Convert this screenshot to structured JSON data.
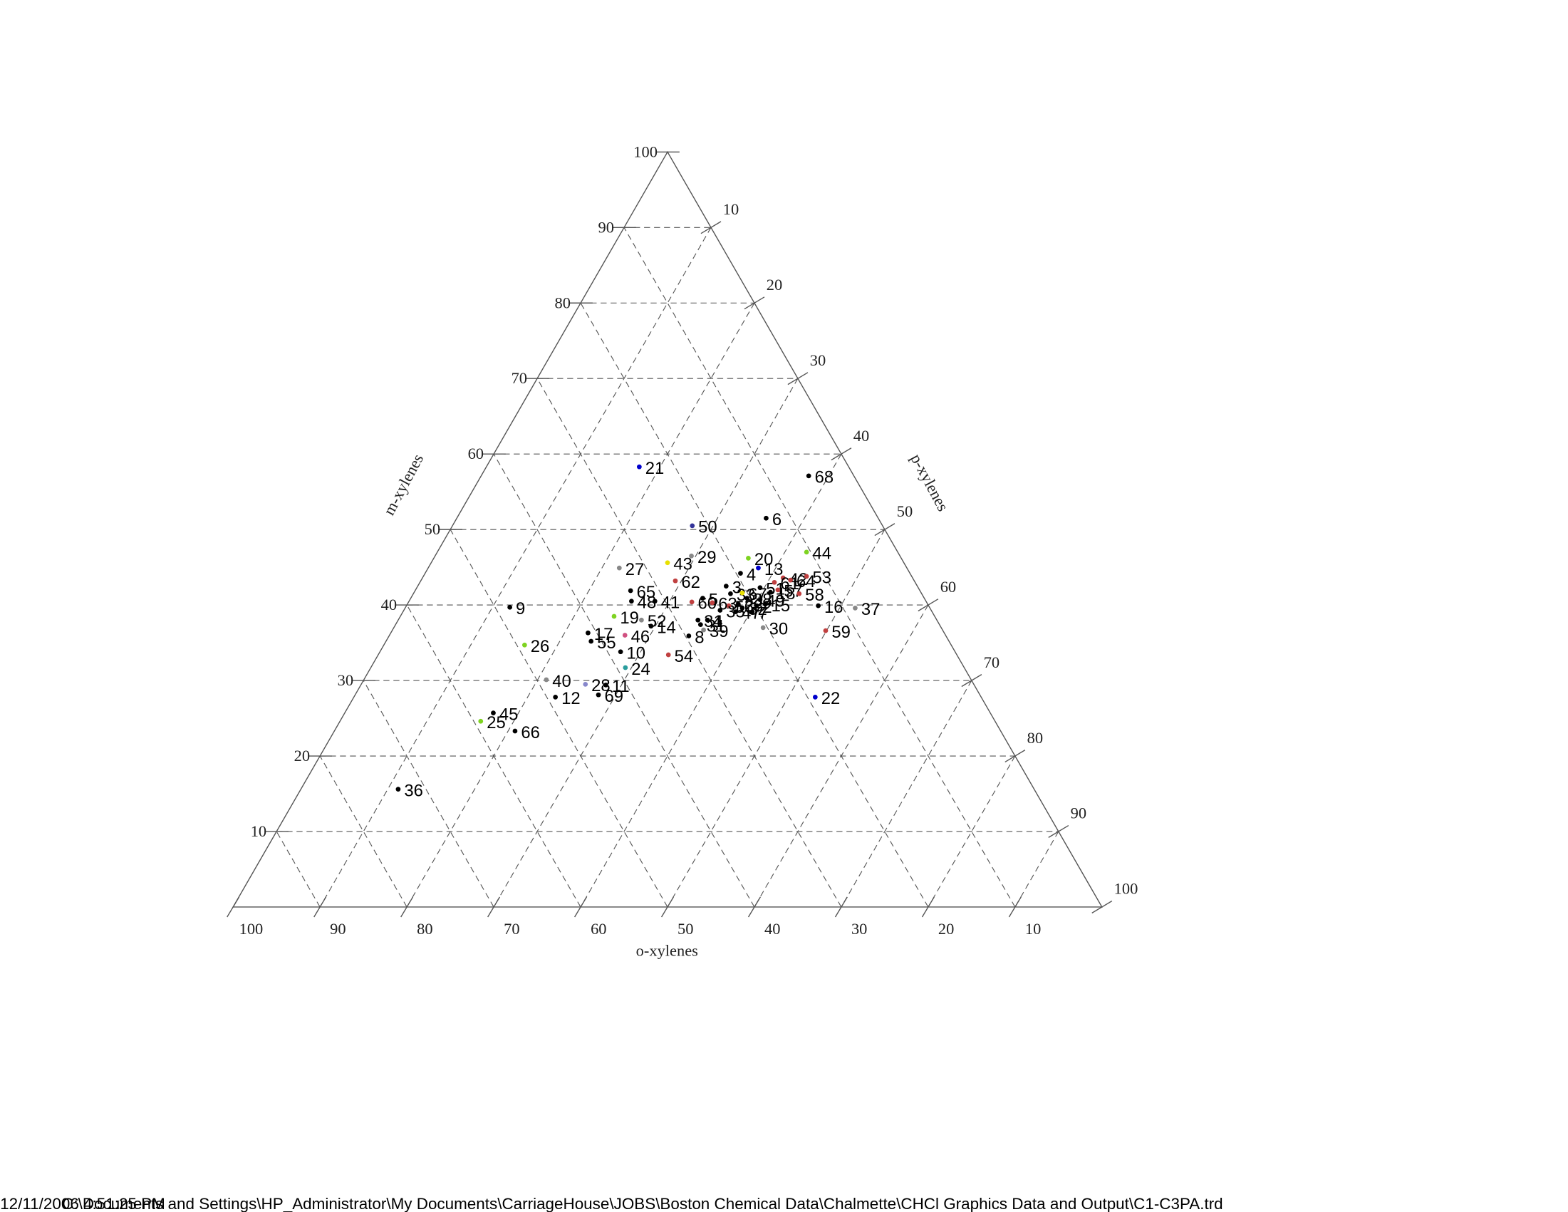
{
  "chart_data": {
    "type": "ternary",
    "axes": {
      "m": {
        "label": "m-xylenes",
        "ticks": [
          10,
          20,
          30,
          40,
          50,
          60,
          70,
          80,
          90,
          100
        ]
      },
      "p": {
        "label": "p-xylenes",
        "ticks": [
          10,
          20,
          30,
          40,
          50,
          60,
          70,
          80,
          90,
          100
        ]
      },
      "o": {
        "label": "o-xylenes",
        "ticks": [
          100,
          90,
          80,
          70,
          60,
          50,
          40,
          30,
          20,
          10
        ]
      }
    },
    "grid": true,
    "points": [
      {
        "label": "1",
        "m": 38.0,
        "p": 35.6,
        "o": 26.4,
        "color": "#000000"
      },
      {
        "label": "2",
        "m": 39.9,
        "p": 40.3,
        "o": 19.8,
        "color": "#000000"
      },
      {
        "label": "3",
        "m": 42.5,
        "p": 35.5,
        "o": 22.0,
        "color": "#000000"
      },
      {
        "label": "4",
        "m": 44.2,
        "p": 36.3,
        "o": 19.5,
        "color": "#000000"
      },
      {
        "label": "5",
        "m": 40.9,
        "p": 33.6,
        "o": 25.5,
        "color": "#000000"
      },
      {
        "label": "6",
        "m": 51.5,
        "p": 35.6,
        "o": 12.9,
        "color": "#000000"
      },
      {
        "label": "7",
        "m": 39.1,
        "p": 40.2,
        "o": 20.7,
        "color": "#000000"
      },
      {
        "label": "8",
        "m": 35.9,
        "p": 34.5,
        "o": 29.6,
        "color": "#000000"
      },
      {
        "label": "9",
        "m": 39.7,
        "p": 12.0,
        "o": 48.3,
        "color": "#000000"
      },
      {
        "label": "10",
        "m": 33.8,
        "p": 27.7,
        "o": 38.5,
        "color": "#000000"
      },
      {
        "label": "11",
        "m": 29.4,
        "p": 28.2,
        "o": 42.4,
        "color": "#000000"
      },
      {
        "label": "12",
        "m": 27.8,
        "p": 23.2,
        "o": 49.0,
        "color": "#000000"
      },
      {
        "label": "13",
        "m": 44.9,
        "p": 38.0,
        "o": 17.1,
        "color": "#0000cc"
      },
      {
        "label": "14",
        "m": 37.2,
        "p": 29.5,
        "o": 33.3,
        "color": "#000000"
      },
      {
        "label": "15",
        "m": 40.1,
        "p": 41.2,
        "o": 18.7,
        "color": "#000000"
      },
      {
        "label": "16",
        "m": 39.9,
        "p": 47.4,
        "o": 12.7,
        "color": "#000000"
      },
      {
        "label": "17",
        "m": 36.3,
        "p": 22.7,
        "o": 41.0,
        "color": "#000000"
      },
      {
        "label": "18",
        "m": 41.7,
        "p": 41.0,
        "o": 17.3,
        "color": "#000000"
      },
      {
        "label": "19",
        "m": 38.5,
        "p": 24.6,
        "o": 36.9,
        "color": "#7ed321"
      },
      {
        "label": "20",
        "m": 46.2,
        "p": 36.2,
        "o": 17.6,
        "color": "#7ed321"
      },
      {
        "label": "21",
        "m": 58.3,
        "p": 17.6,
        "o": 24.1,
        "color": "#0000cc"
      },
      {
        "label": "22",
        "m": 27.8,
        "p": 53.1,
        "o": 19.1,
        "color": "#0000cc"
      },
      {
        "label": "23",
        "m": 40.1,
        "p": 38.1,
        "o": 21.8,
        "color": "#000000"
      },
      {
        "label": "24",
        "m": 31.7,
        "p": 29.3,
        "o": 39.0,
        "color": "#2a9d9d"
      },
      {
        "label": "25",
        "m": 24.6,
        "p": 16.2,
        "o": 59.2,
        "color": "#7ed321"
      },
      {
        "label": "26",
        "m": 34.7,
        "p": 16.2,
        "o": 49.1,
        "color": "#7ed321"
      },
      {
        "label": "27",
        "m": 44.9,
        "p": 22.0,
        "o": 33.1,
        "color": "#888888"
      },
      {
        "label": "28",
        "m": 29.5,
        "p": 25.8,
        "o": 44.7,
        "color": "#8888cc"
      },
      {
        "label": "29",
        "m": 46.5,
        "p": 29.5,
        "o": 24.0,
        "color": "#888888"
      },
      {
        "label": "30",
        "m": 37.0,
        "p": 42.5,
        "o": 20.5,
        "color": "#888888"
      },
      {
        "label": "31",
        "m": 37.4,
        "p": 35.1,
        "o": 27.5,
        "color": "#000000"
      },
      {
        "label": "32",
        "m": 39.6,
        "p": 38.8,
        "o": 21.6,
        "color": "#000000"
      },
      {
        "label": "33",
        "m": 41.5,
        "p": 36.5,
        "o": 22.0,
        "color": "#000000"
      },
      {
        "label": "34",
        "m": 38.0,
        "p": 34.5,
        "o": 27.5,
        "color": "#000000"
      },
      {
        "label": "35",
        "m": 39.3,
        "p": 36.4,
        "o": 24.3,
        "color": "#000000"
      },
      {
        "label": "36",
        "m": 15.6,
        "p": 11.2,
        "o": 73.2,
        "color": "#000000"
      },
      {
        "label": "37",
        "m": 39.6,
        "p": 51.8,
        "o": 8.6,
        "color": "#888888"
      },
      {
        "label": "38",
        "m": 40.9,
        "p": 38.7,
        "o": 20.4,
        "color": "#000000"
      },
      {
        "label": "39",
        "m": 36.7,
        "p": 35.8,
        "o": 27.5,
        "color": "#888888"
      },
      {
        "label": "40",
        "m": 30.1,
        "p": 21.0,
        "o": 48.9,
        "color": "#888888"
      },
      {
        "label": "41",
        "m": 40.5,
        "p": 28.3,
        "o": 31.2,
        "color": "#000000"
      },
      {
        "label": "42",
        "m": 43.6,
        "p": 41.5,
        "o": 14.9,
        "color": "#c04040"
      },
      {
        "label": "43",
        "m": 45.6,
        "p": 27.2,
        "o": 27.2,
        "color": "#e8e000"
      },
      {
        "label": "44",
        "m": 47.0,
        "p": 42.5,
        "o": 10.5,
        "color": "#7ed321"
      },
      {
        "label": "45",
        "m": 25.7,
        "p": 17.1,
        "o": 57.2,
        "color": "#000000"
      },
      {
        "label": "46",
        "m": 36.0,
        "p": 27.1,
        "o": 36.9,
        "color": "#d05080"
      },
      {
        "label": "47",
        "m": 39.1,
        "p": 38.3,
        "o": 22.6,
        "color": "#000000"
      },
      {
        "label": "48",
        "m": 40.5,
        "p": 25.6,
        "o": 33.9,
        "color": "#000000"
      },
      {
        "label": "49",
        "m": 40.7,
        "p": 40.3,
        "o": 19.0,
        "color": "#000000"
      },
      {
        "label": "50",
        "m": 50.5,
        "p": 27.6,
        "o": 21.9,
        "color": "#333399"
      },
      {
        "label": "51",
        "m": 42.3,
        "p": 39.5,
        "o": 18.2,
        "color": "#000000"
      },
      {
        "label": "52",
        "m": 38.0,
        "p": 28.0,
        "o": 34.0,
        "color": "#888888"
      },
      {
        "label": "53",
        "m": 43.8,
        "p": 44.1,
        "o": 12.1,
        "color": "#c04040"
      },
      {
        "label": "54",
        "m": 33.4,
        "p": 33.4,
        "o": 33.2,
        "color": "#c04040"
      },
      {
        "label": "55",
        "m": 35.2,
        "p": 23.6,
        "o": 41.2,
        "color": "#000000"
      },
      {
        "label": "56",
        "m": 39.9,
        "p": 37.1,
        "o": 23.0,
        "color": "#c04040"
      },
      {
        "label": "57",
        "m": 42.0,
        "p": 41.7,
        "o": 16.3,
        "color": "#c04040"
      },
      {
        "label": "58",
        "m": 41.5,
        "p": 44.4,
        "o": 14.1,
        "color": "#c04040"
      },
      {
        "label": "59",
        "m": 36.6,
        "p": 49.9,
        "o": 13.5,
        "color": "#c04040"
      },
      {
        "label": "60",
        "m": 40.4,
        "p": 32.6,
        "o": 27.0,
        "color": "#c04040"
      },
      {
        "label": "61",
        "m": 43.0,
        "p": 40.8,
        "o": 16.2,
        "color": "#c04040"
      },
      {
        "label": "62",
        "m": 43.2,
        "p": 29.3,
        "o": 27.5,
        "color": "#c04040"
      },
      {
        "label": "63",
        "m": 40.3,
        "p": 35.0,
        "o": 24.7,
        "color": "#c04040"
      },
      {
        "label": "64",
        "m": 43.3,
        "p": 42.5,
        "o": 14.2,
        "color": "#c04040"
      },
      {
        "label": "65",
        "m": 41.9,
        "p": 24.8,
        "o": 33.3,
        "color": "#000000"
      },
      {
        "label": "66",
        "m": 23.3,
        "p": 20.8,
        "o": 55.9,
        "color": "#000000"
      },
      {
        "label": "67",
        "m": 41.6,
        "p": 37.8,
        "o": 20.6,
        "color": "#e8e000"
      },
      {
        "label": "68",
        "m": 57.1,
        "p": 37.7,
        "o": 5.2,
        "color": "#000000"
      },
      {
        "label": "69",
        "m": 28.1,
        "p": 28.0,
        "o": 43.9,
        "color": "#000000"
      }
    ]
  },
  "footer": {
    "date": "12/11/2006 4:51:25 PM",
    "path": "C:\\Documents and Settings\\HP_Administrator\\My Documents\\CarriageHouse\\JOBS\\Boston Chemical Data\\Chalmette\\CHCl Graphics Data and Output\\C1-C3PA.trd"
  }
}
